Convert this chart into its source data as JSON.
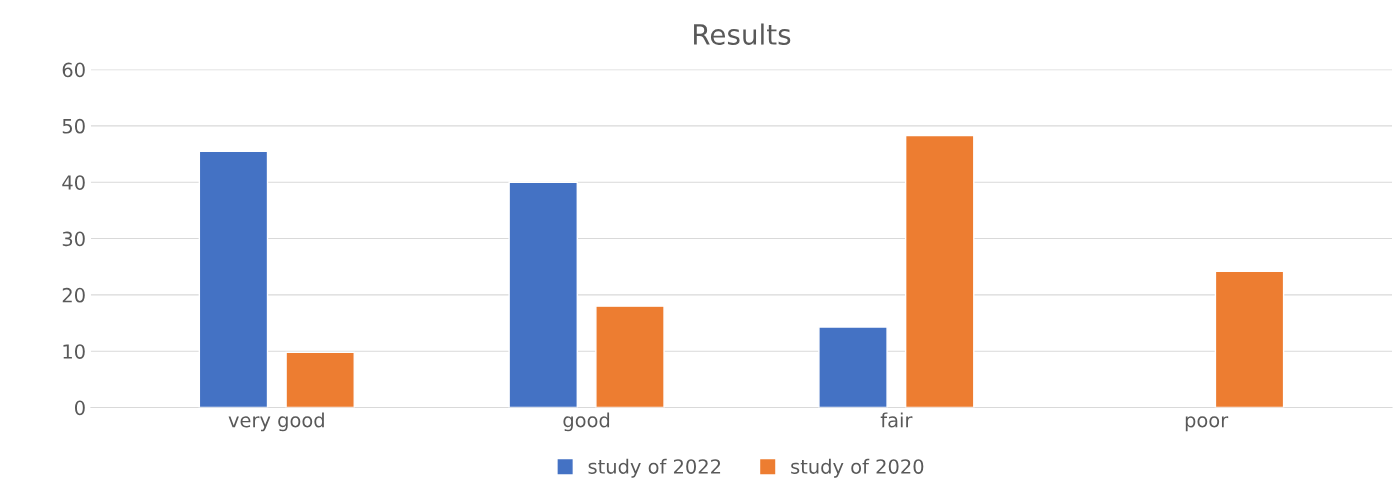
{
  "chart_data": {
    "type": "bar",
    "title": "Results",
    "categories": [
      "very good",
      "good",
      "fair",
      "poor"
    ],
    "series": [
      {
        "name": "study of 2022",
        "color": "#4472c4",
        "values": [
          45.5,
          40,
          14.3,
          null
        ]
      },
      {
        "name": "study of 2020",
        "color": "#ed7d31",
        "values": [
          9.8,
          18,
          48.3,
          24.2
        ]
      }
    ],
    "ylim": [
      0,
      60
    ],
    "yticks": [
      0,
      10,
      20,
      30,
      40,
      50,
      60
    ],
    "grid": "y",
    "legend": "bottom"
  }
}
